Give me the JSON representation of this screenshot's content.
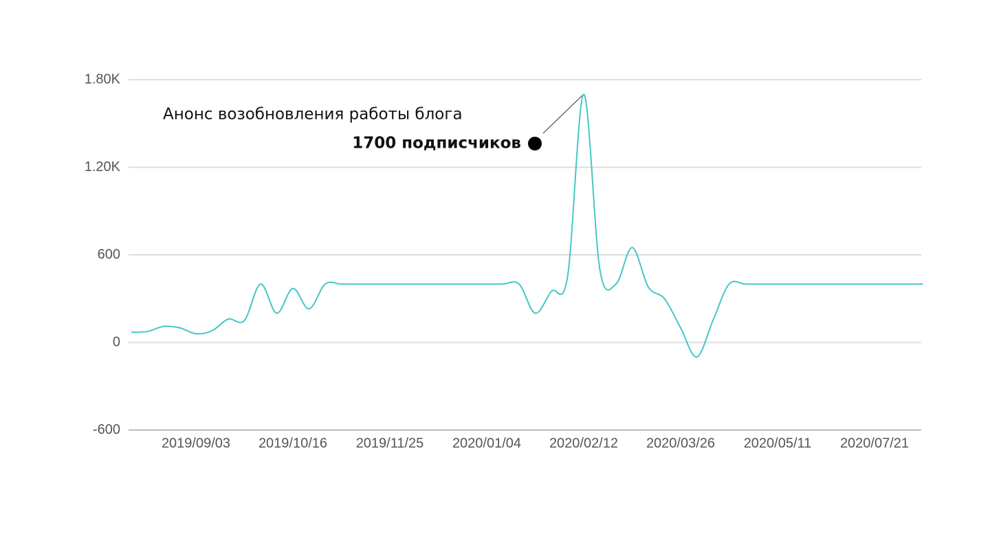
{
  "chart_data": {
    "type": "line",
    "categories": [
      null,
      null,
      null,
      null,
      "2019/09/03",
      null,
      null,
      null,
      null,
      null,
      "2019/10/16",
      null,
      null,
      null,
      null,
      null,
      "2019/11/25",
      null,
      null,
      null,
      null,
      null,
      "2020/01/04",
      null,
      null,
      null,
      null,
      null,
      "2020/02/12",
      null,
      null,
      null,
      null,
      null,
      "2020/03/26",
      null,
      null,
      null,
      null,
      null,
      "2020/05/11",
      null,
      null,
      null,
      null,
      null,
      "2020/07/21",
      null,
      null,
      null
    ],
    "series": [
      {
        "color": "#45c6c6",
        "values": [
          70,
          75,
          110,
          100,
          60,
          80,
          160,
          150,
          400,
          200,
          370,
          230,
          400,
          400,
          400,
          400,
          400,
          400,
          400,
          400,
          400,
          400,
          400,
          400,
          400,
          200,
          350,
          450,
          1700,
          500,
          400,
          650,
          380,
          300,
          100,
          -100,
          150,
          400,
          400,
          400,
          400,
          400,
          400,
          400,
          400,
          400,
          400,
          400,
          400,
          400
        ]
      }
    ],
    "ylim": [
      -600,
      1800
    ],
    "yticks": [
      -600,
      0,
      600,
      {
        "value": 1200,
        "label": "1.20K"
      },
      {
        "value": 1800,
        "label": "1.80K"
      }
    ],
    "grid": true,
    "annotations": [
      "Анонс возобновления работы блога",
      "1700 подписчиков"
    ]
  }
}
